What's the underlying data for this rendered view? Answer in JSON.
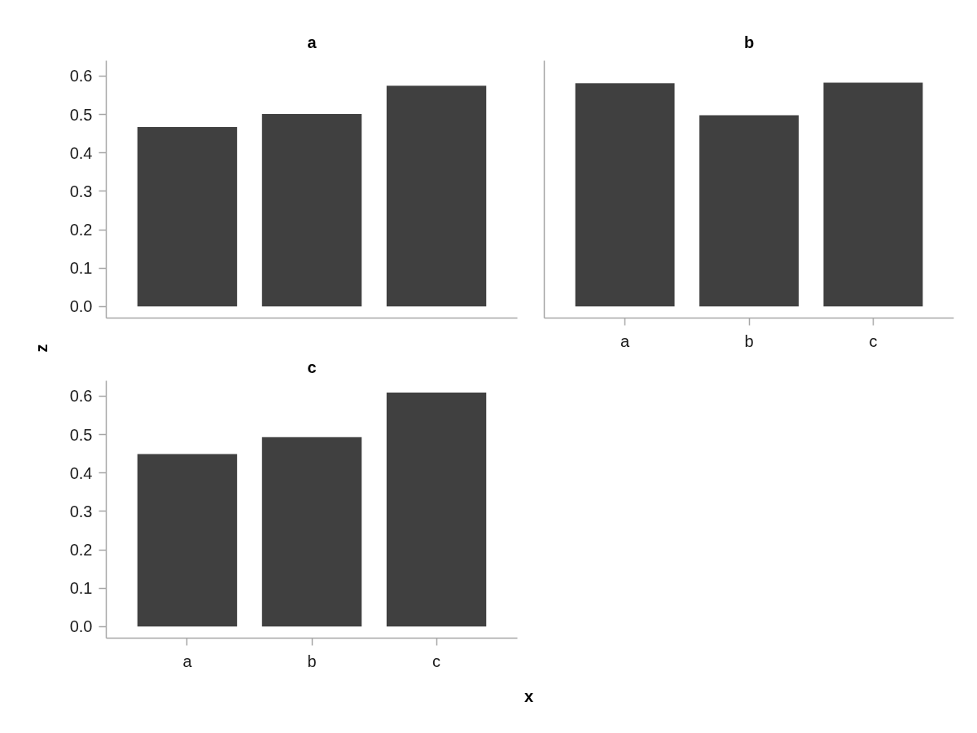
{
  "chart_data": [
    {
      "type": "bar",
      "title": "a",
      "ylabel": "z",
      "categories": [
        null,
        null,
        null
      ],
      "values": [
        0.467,
        0.501,
        0.575
      ],
      "color": "#404040",
      "ylim": [
        -0.03,
        0.64
      ],
      "yticks": [
        {
          "value": 0,
          "label": "0.0"
        },
        0.1,
        0.2,
        0.3,
        0.4,
        0.5,
        0.6
      ],
      "tick_labels": "y"
    },
    {
      "type": "bar",
      "title": "b",
      "categories": [
        "a",
        "b",
        "c"
      ],
      "values": [
        0.581,
        0.498,
        0.583
      ],
      "color": "#404040",
      "ylim": [
        -0.03,
        0.64
      ],
      "tick_labels": "x"
    },
    {
      "type": "bar",
      "title": "c",
      "xlabel": "x",
      "categories": [
        "a",
        "b",
        "c"
      ],
      "values": [
        0.449,
        0.493,
        0.609
      ],
      "color": "#404040",
      "ylim": [
        -0.03,
        0.64
      ],
      "yticks": [
        {
          "value": 0,
          "label": "0.0"
        },
        0.1,
        0.2,
        0.3,
        0.4,
        0.5,
        0.6
      ]
    }
  ]
}
